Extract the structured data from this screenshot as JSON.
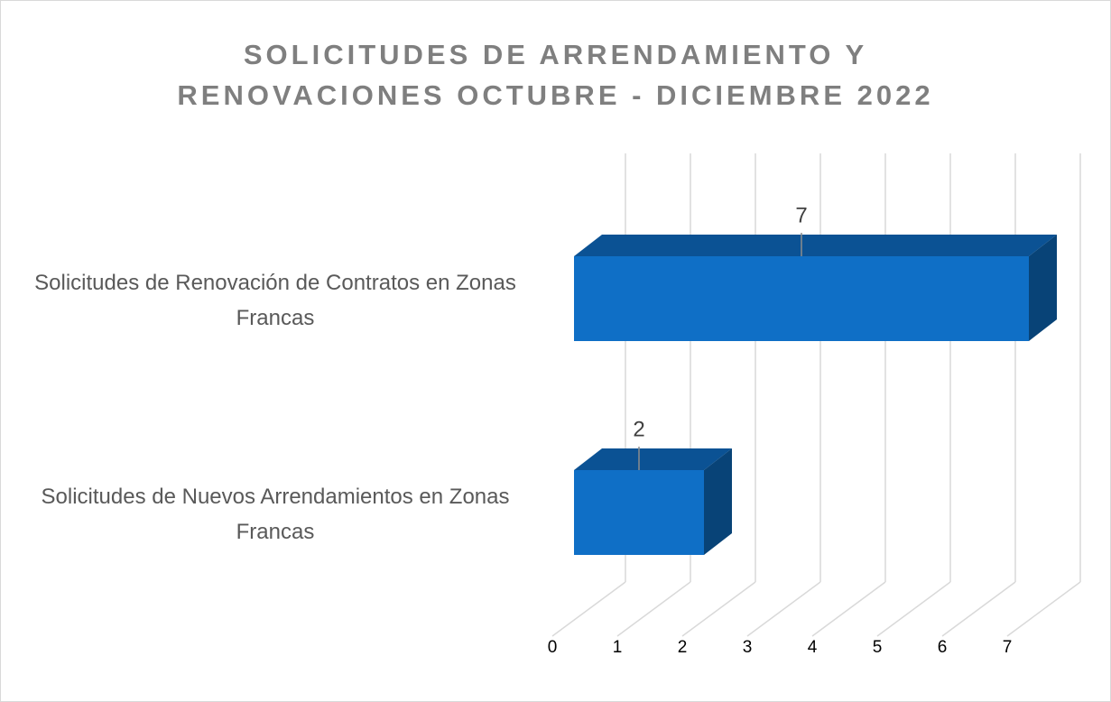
{
  "chart_data": {
    "type": "bar3d_horizontal",
    "title": [
      "SOLICITUDES DE ARRENDAMIENTO Y",
      "RENOVACIONES OCTUBRE - DICIEMBRE 2022"
    ],
    "categories": [
      "Solicitudes de Nuevos Arrendamientos en Zonas Francas",
      "Solicitudes de Renovación de Contratos en Zonas Francas"
    ],
    "values": [
      2,
      7
    ],
    "color": "#0f6fc6",
    "xlim": [
      0,
      7
    ],
    "xticks": [
      0,
      1,
      2,
      3,
      4,
      5,
      6,
      7
    ],
    "grid": true
  }
}
